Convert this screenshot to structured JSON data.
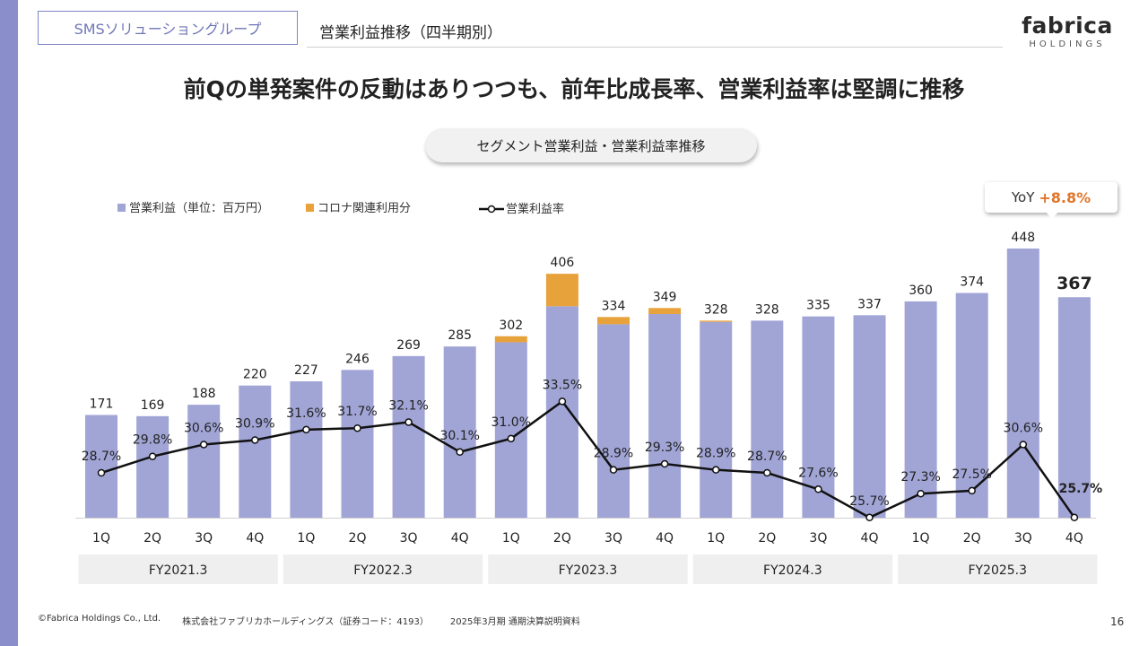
{
  "header": {
    "segment": "SMSソリューショングループ",
    "section_title": "営業利益推移（四半期別）",
    "logo_main": "fabrica",
    "logo_sub": "HOLDINGS"
  },
  "headline": "前Qの単発案件の反動はありつつも、前年比成長率、営業利益率は堅調に推移",
  "chart_title": "セグメント営業利益・営業利益率推移",
  "yoy": {
    "label": "YoY",
    "value": "+8.8%"
  },
  "legend": {
    "profit": "営業利益（単位：百万円）",
    "corona": "コロナ関連利用分",
    "margin": "営業利益率"
  },
  "colors": {
    "profit": "#a1a5d6",
    "corona": "#e8a23c",
    "margin": "#111111",
    "accent": "#e0762a",
    "fy_band": "#efefef"
  },
  "chart_data": {
    "type": "bar",
    "categories": [
      "1Q",
      "2Q",
      "3Q",
      "4Q",
      "1Q",
      "2Q",
      "3Q",
      "4Q",
      "1Q",
      "2Q",
      "3Q",
      "4Q",
      "1Q",
      "2Q",
      "3Q",
      "4Q",
      "1Q",
      "2Q",
      "3Q",
      "4Q"
    ],
    "fiscal_years": [
      "FY2021.3",
      "FY2022.3",
      "FY2023.3",
      "FY2024.3",
      "FY2025.3"
    ],
    "series": [
      {
        "name": "営業利益（単位：百万円）",
        "values": [
          171,
          169,
          188,
          220,
          227,
          246,
          269,
          285,
          292,
          352,
          322,
          339,
          326,
          328,
          335,
          337,
          360,
          374,
          448,
          367
        ]
      },
      {
        "name": "コロナ関連利用分",
        "values": [
          0,
          0,
          0,
          0,
          0,
          0,
          0,
          0,
          10,
          54,
          12,
          10,
          2,
          0,
          0,
          0,
          0,
          0,
          0,
          0
        ]
      }
    ],
    "total_labels": [
      "171",
      "169",
      "188",
      "220",
      "227",
      "246",
      "269",
      "285",
      "302",
      "406",
      "334",
      "349",
      "328",
      "328",
      "335",
      "337",
      "360",
      "374",
      "448",
      "367"
    ],
    "margin": {
      "name": "営業利益率",
      "values": [
        28.7,
        29.8,
        30.6,
        30.9,
        31.6,
        31.7,
        32.1,
        30.1,
        31.0,
        33.5,
        28.9,
        29.3,
        28.9,
        28.7,
        27.6,
        25.7,
        27.3,
        27.5,
        30.6,
        25.7
      ],
      "labels": [
        "28.7%",
        "29.8%",
        "30.6%",
        "30.9%",
        "31.6%",
        "31.7%",
        "32.1%",
        "30.1%",
        "31.0%",
        "33.5%",
        "28.9%",
        "29.3%",
        "28.9%",
        "28.7%",
        "27.6%",
        "25.7%",
        "27.3%",
        "27.5%",
        "30.6%",
        "25.7%"
      ]
    },
    "ylim": [
      0,
      470
    ],
    "grid": false,
    "legend_position": "top-left"
  },
  "footer": {
    "copyright": "©Fabrica Holdings Co., Ltd.",
    "company": "株式会社ファブリカホールディングス（証券コード：4193）",
    "doc": "2025年3月期 通期決算説明資料",
    "page": "16"
  }
}
